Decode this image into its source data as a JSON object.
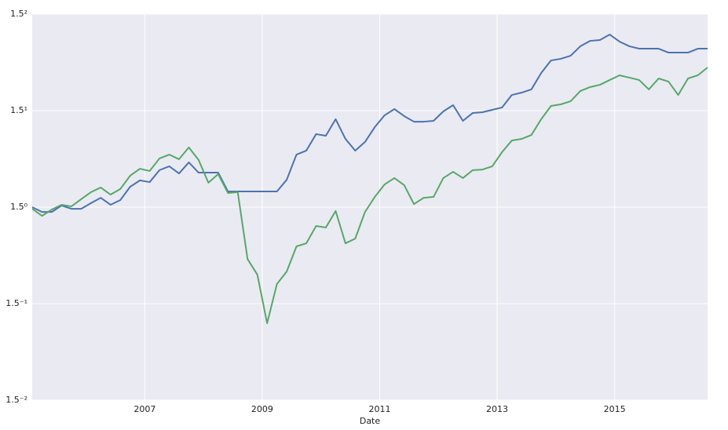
{
  "chart_data": {
    "type": "line",
    "xlabel": "Date",
    "log_base": 1.5,
    "grid": true,
    "x": [
      2005.083,
      2005.25,
      2005.417,
      2005.583,
      2005.75,
      2005.917,
      2006.083,
      2006.25,
      2006.417,
      2006.583,
      2006.75,
      2006.917,
      2007.083,
      2007.25,
      2007.417,
      2007.583,
      2007.75,
      2007.917,
      2008.083,
      2008.25,
      2008.417,
      2008.583,
      2008.75,
      2008.917,
      2009.083,
      2009.25,
      2009.417,
      2009.583,
      2009.75,
      2009.917,
      2010.083,
      2010.25,
      2010.417,
      2010.583,
      2010.75,
      2010.917,
      2011.083,
      2011.25,
      2011.417,
      2011.583,
      2011.75,
      2011.917,
      2012.083,
      2012.25,
      2012.417,
      2012.583,
      2012.75,
      2012.917,
      2013.083,
      2013.25,
      2013.417,
      2013.583,
      2013.75,
      2013.917,
      2014.083,
      2014.25,
      2014.417,
      2014.583,
      2014.75,
      2014.917,
      2015.083,
      2015.25,
      2015.417,
      2015.583,
      2015.75,
      2015.917,
      2016.083,
      2016.25,
      2016.417,
      2016.583
    ],
    "series": [
      {
        "color": "#4c72b0",
        "values": [
          1.0,
          0.98,
          0.98,
          1.007,
          0.993,
          0.993,
          1.017,
          1.04,
          1.01,
          1.03,
          1.089,
          1.119,
          1.111,
          1.168,
          1.187,
          1.152,
          1.207,
          1.156,
          1.156,
          1.156,
          1.068,
          1.068,
          1.068,
          1.068,
          1.068,
          1.068,
          1.122,
          1.247,
          1.268,
          1.359,
          1.35,
          1.447,
          1.332,
          1.268,
          1.315,
          1.4,
          1.471,
          1.51,
          1.466,
          1.432,
          1.432,
          1.437,
          1.495,
          1.535,
          1.437,
          1.485,
          1.49,
          1.505,
          1.52,
          1.602,
          1.618,
          1.64,
          1.757,
          1.852,
          1.865,
          1.889,
          1.966,
          2.011,
          2.018,
          2.065,
          2.005,
          1.966,
          1.946,
          1.946,
          1.946,
          1.914,
          1.914,
          1.914,
          1.946,
          1.946
        ]
      },
      {
        "color": "#55a868",
        "values": [
          0.993,
          0.964,
          0.99,
          1.01,
          1.003,
          1.034,
          1.065,
          1.086,
          1.054,
          1.079,
          1.141,
          1.175,
          1.164,
          1.227,
          1.247,
          1.223,
          1.285,
          1.219,
          1.108,
          1.149,
          1.061,
          1.065,
          0.804,
          0.753,
          0.614,
          0.724,
          0.763,
          0.848,
          0.859,
          0.924,
          0.918,
          0.984,
          0.859,
          0.876,
          0.98,
          1.044,
          1.1,
          1.13,
          1.097,
          1.013,
          1.04,
          1.044,
          1.13,
          1.16,
          1.13,
          1.168,
          1.171,
          1.187,
          1.26,
          1.323,
          1.332,
          1.354,
          1.447,
          1.53,
          1.54,
          1.56,
          1.629,
          1.656,
          1.672,
          1.706,
          1.74,
          1.723,
          1.706,
          1.64,
          1.717,
          1.695,
          1.602,
          1.717,
          1.74,
          1.798
        ]
      }
    ],
    "xlim": [
      2005.083,
      2016.583
    ],
    "xticks": [
      2007,
      2009,
      2011,
      2013,
      2015
    ],
    "ylim": [
      0.4444,
      2.25
    ],
    "yticks": [
      {
        "value": 0.4444,
        "label": "1.5⁻²"
      },
      {
        "value": 0.6667,
        "label": "1.5⁻¹"
      },
      {
        "value": 1,
        "label": "1.5⁰"
      },
      {
        "value": 1.5,
        "label": "1.5¹"
      },
      {
        "value": 2.25,
        "label": "1.5²"
      }
    ]
  }
}
